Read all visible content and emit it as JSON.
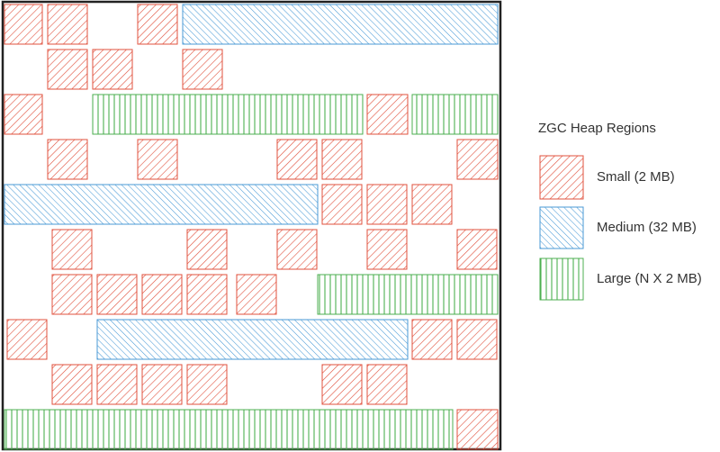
{
  "legend": {
    "title": "ZGC Heap Regions",
    "items": [
      {
        "label": "Small (2 MB)"
      },
      {
        "label": "Medium (32 MB)"
      },
      {
        "label": "Large (N X 2 MB)"
      }
    ]
  }
}
